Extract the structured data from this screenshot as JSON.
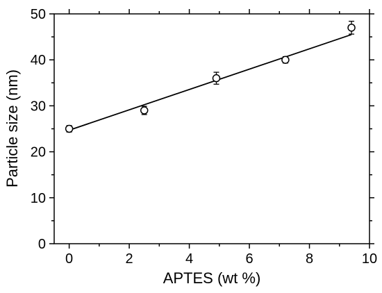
{
  "chart_data": {
    "type": "scatter",
    "xlabel": "APTES (wt %)",
    "ylabel": "Particle size (nm)",
    "xlim": [
      -0.5,
      10
    ],
    "ylim": [
      0,
      50
    ],
    "xticks": [
      0,
      2,
      4,
      6,
      8,
      10
    ],
    "yticks": [
      0,
      10,
      20,
      30,
      40,
      50
    ],
    "minor_ticks": true,
    "grid": false,
    "series": [
      {
        "marker": "open-circle",
        "points": [
          {
            "x": 0.0,
            "y": 25.0,
            "err": 0.7
          },
          {
            "x": 2.5,
            "y": 29.0,
            "err": 0.9
          },
          {
            "x": 4.9,
            "y": 36.0,
            "err": 1.3
          },
          {
            "x": 7.2,
            "y": 40.0,
            "err": 0.7
          },
          {
            "x": 9.4,
            "y": 47.0,
            "err": 1.4
          }
        ]
      }
    ],
    "fit_line": {
      "x": [
        0,
        9.4
      ],
      "y": [
        24.7,
        45.5
      ]
    }
  }
}
